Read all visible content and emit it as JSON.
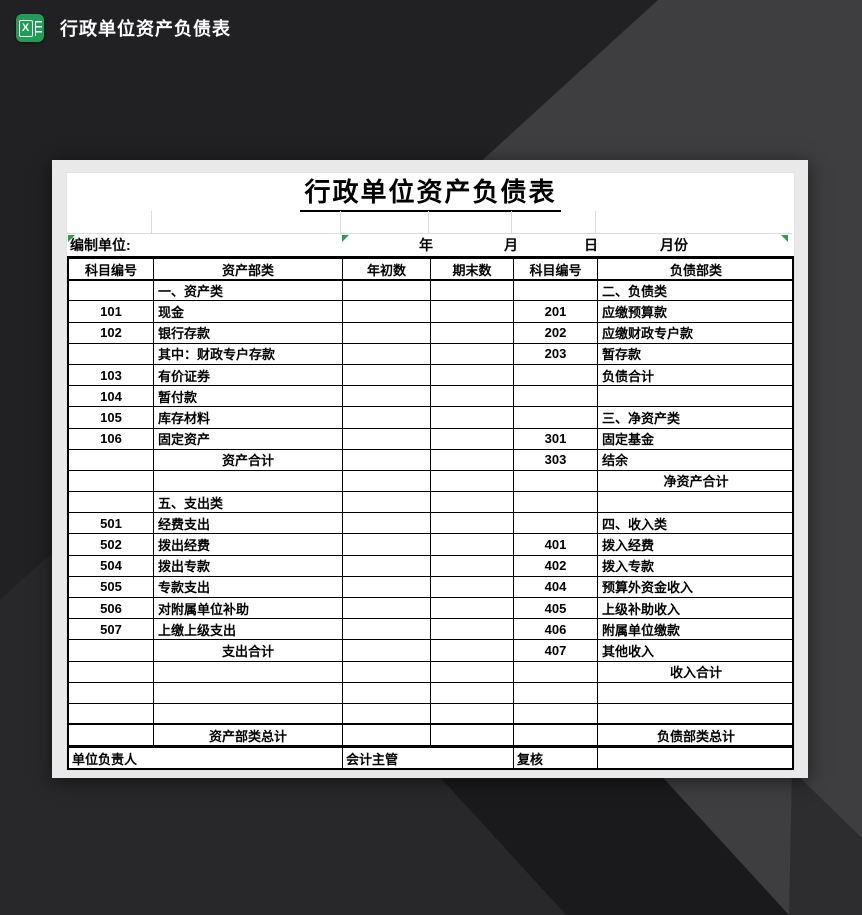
{
  "window": {
    "title": "行政单位资产负债表"
  },
  "doc": {
    "title": "行政单位资产负债表"
  },
  "unit_row": {
    "label": "编制单位:",
    "date_labels": [
      "年",
      "月",
      "日",
      "月份"
    ]
  },
  "table": {
    "headers": [
      "科目编号",
      "资产部类",
      "年初数",
      "期末数",
      "科目编号",
      "负债部类"
    ],
    "rows": [
      [
        "",
        "一、资产类",
        "l",
        "",
        "二、负债类",
        "l"
      ],
      [
        "101",
        "现金",
        "l",
        "201",
        "应缴预算款",
        "l"
      ],
      [
        "102",
        "银行存款",
        "l",
        "202",
        "应缴财政专户款",
        "l"
      ],
      [
        "",
        "其中：财政专户存款",
        "l",
        "203",
        "暂存款",
        "l"
      ],
      [
        "103",
        "有价证券",
        "l",
        "",
        "负债合计",
        "l"
      ],
      [
        "104",
        "暂付款",
        "l",
        "",
        "",
        "l"
      ],
      [
        "105",
        "库存材料",
        "l",
        "",
        "三、净资产类",
        "l"
      ],
      [
        "106",
        "固定资产",
        "l",
        "301",
        "固定基金",
        "l"
      ],
      [
        "",
        "资产合计",
        "c",
        "303",
        "结余",
        "l"
      ],
      [
        "",
        "",
        "l",
        "",
        "净资产合计",
        "c"
      ],
      [
        "",
        "五、支出类",
        "l",
        "",
        "",
        "l"
      ],
      [
        "501",
        "经费支出",
        "l",
        "",
        "四、收入类",
        "l"
      ],
      [
        "502",
        "拨出经费",
        "l",
        "401",
        "拨入经费",
        "l"
      ],
      [
        "504",
        "拨出专款",
        "l",
        "402",
        "拨入专款",
        "l"
      ],
      [
        "505",
        "专款支出",
        "l",
        "404",
        "预算外资金收入",
        "l"
      ],
      [
        "506",
        "对附属单位补助",
        "l",
        "405",
        "上级补助收入",
        "l"
      ],
      [
        "507",
        "上缴上级支出",
        "l",
        "406",
        "附属单位缴款",
        "l"
      ],
      [
        "",
        "支出合计",
        "c",
        "407",
        "其他收入",
        "l"
      ],
      [
        "",
        "",
        "l",
        "",
        "收入合计",
        "c"
      ],
      [
        "",
        "",
        "l",
        "",
        "",
        "l"
      ],
      [
        "",
        "",
        "l",
        "",
        "",
        "l"
      ],
      [
        "",
        "资产部类总计",
        "c",
        "",
        "负债部类总计",
        "c"
      ]
    ]
  },
  "footer": {
    "cells": [
      "单位负责人",
      "会计主管",
      "复核",
      ""
    ]
  },
  "colors": {
    "accent_green": "#1f9d55",
    "flag_green": "#2e9b4e",
    "bg_base": "#3e3e40",
    "bg_dark_band": "#1a1a1c",
    "sheet_margin": "#e9e9e9",
    "grid_line": "#000000"
  }
}
